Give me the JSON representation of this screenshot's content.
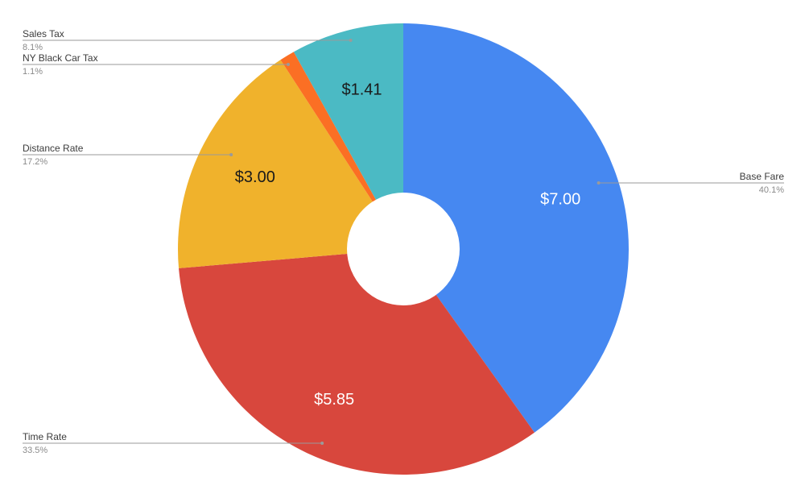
{
  "chart_data": {
    "type": "pie",
    "donut": true,
    "title": "",
    "currency_prefix": "$",
    "slices": [
      {
        "name": "Base Fare",
        "value": 7.0,
        "percent": "40.1%",
        "label": "$7.00",
        "color": "#4688f1",
        "label_color": "#ffffff"
      },
      {
        "name": "Time Rate",
        "value": 5.85,
        "percent": "33.5%",
        "label": "$5.85",
        "color": "#d8473d",
        "label_color": "#ffffff"
      },
      {
        "name": "Distance Rate",
        "value": 3.0,
        "percent": "17.2%",
        "label": "$3.00",
        "color": "#f0b22c",
        "label_color": "#1a1a1a"
      },
      {
        "name": "NY Black Car Tax",
        "value": 0.19,
        "percent": "1.1%",
        "label": "",
        "color": "#fb6f24",
        "label_color": "#1a1a1a"
      },
      {
        "name": "Sales Tax",
        "value": 1.41,
        "percent": "8.1%",
        "label": "$1.41",
        "color": "#4bbac4",
        "label_color": "#1a1a1a"
      }
    ],
    "legend_placement": "callouts"
  }
}
